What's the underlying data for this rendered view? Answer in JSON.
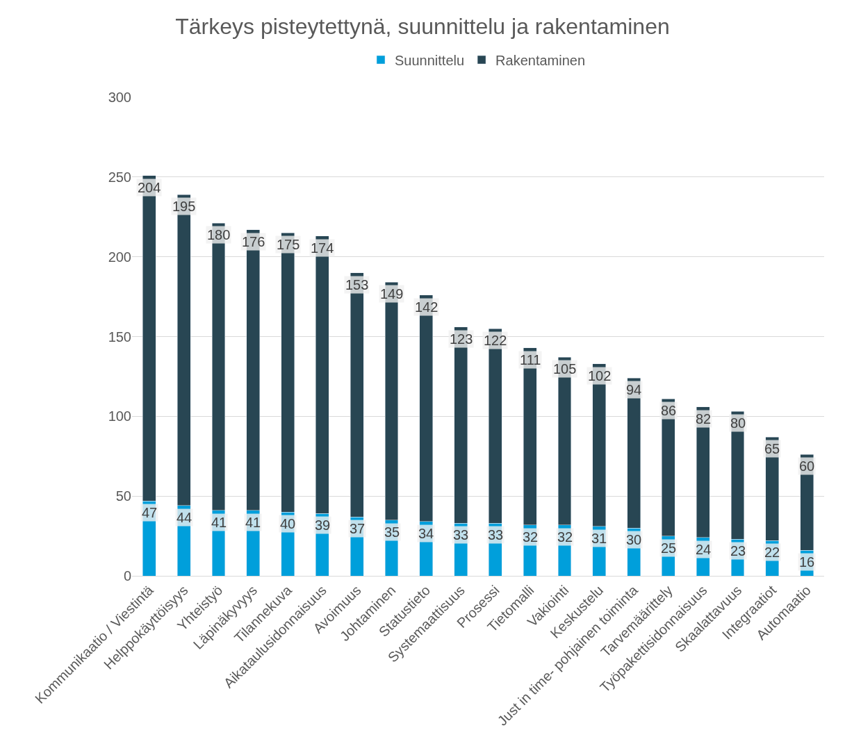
{
  "chart_data": {
    "type": "bar",
    "title": "Tärkeys pisteytettynä, suunnittelu ja rakentaminen",
    "categories": [
      "Kommunikaatio / Viestintä",
      "Helppokäyttöisyys",
      "Yhteistyö",
      "Läpinäkyvyys",
      "Tilannekuva",
      "Aikataulusidonnaisuus",
      "Avoimuus",
      "Johtaminen",
      "Statustieto",
      "Systemaattisuus",
      "Prosessi",
      "Tietomalli",
      "Vakiointi",
      "Keskustelu",
      "Just in time- pohjainen toiminta",
      "Tarvemäärittely",
      "Työpakettisidonnaisuus",
      "Skaalattavuus",
      "Integraatiot",
      "Automaatio"
    ],
    "series": [
      {
        "name": "Suunnittelu",
        "color": "#009fdb",
        "values": [
          47,
          44,
          41,
          41,
          40,
          39,
          37,
          35,
          34,
          33,
          33,
          32,
          32,
          31,
          30,
          25,
          24,
          23,
          22,
          16
        ]
      },
      {
        "name": "Rakentaminen",
        "color": "#284653",
        "values": [
          204,
          195,
          180,
          176,
          175,
          174,
          153,
          149,
          142,
          123,
          122,
          111,
          105,
          102,
          94,
          86,
          82,
          80,
          65,
          60
        ]
      }
    ],
    "stacked": true,
    "data_labels": true,
    "ylim": [
      0,
      300
    ],
    "yticks": [
      0,
      50,
      100,
      150,
      200,
      250,
      300
    ],
    "grid": "y",
    "legend": "top"
  }
}
